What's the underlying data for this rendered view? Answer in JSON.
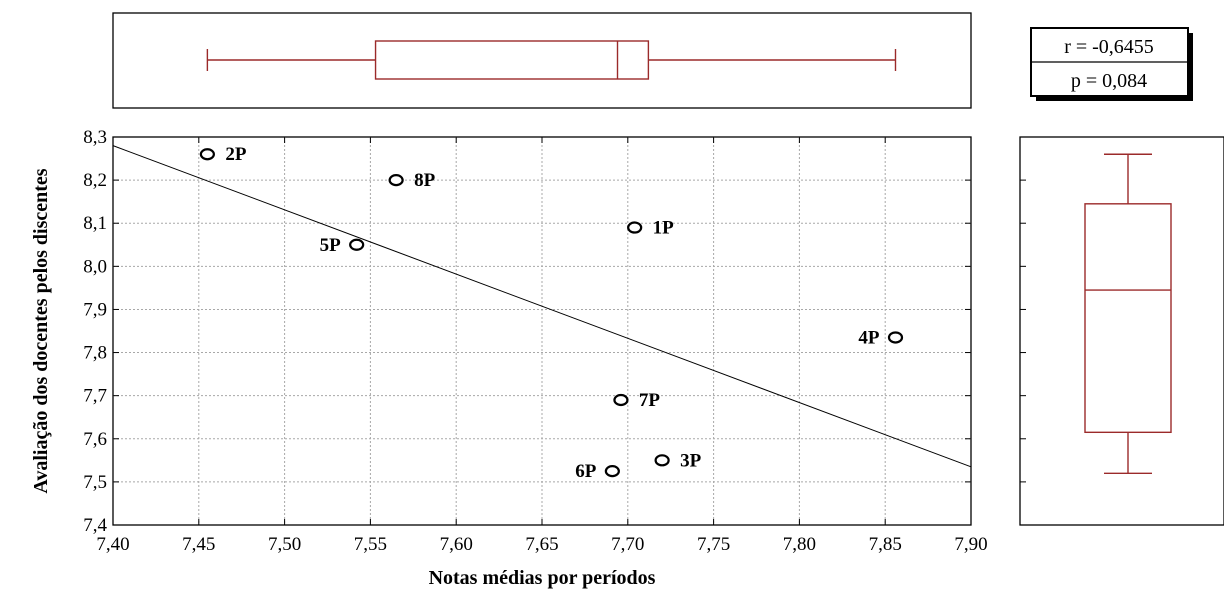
{
  "chart_data": {
    "type": "scatter",
    "xlabel": "Notas médias por períodos",
    "ylabel": "Avaliação dos docentes pelos discentes",
    "xlim": [
      7.4,
      7.9
    ],
    "ylim": [
      7.4,
      8.3
    ],
    "x_ticks": [
      "7,40",
      "7,45",
      "7,50",
      "7,55",
      "7,60",
      "7,65",
      "7,70",
      "7,75",
      "7,80",
      "7,85",
      "7,90"
    ],
    "y_ticks": [
      "7,4",
      "7,5",
      "7,6",
      "7,7",
      "7,8",
      "7,9",
      "8,0",
      "8,1",
      "8,2",
      "8,3"
    ],
    "grid": true,
    "points": [
      {
        "label": "2P",
        "x": 7.455,
        "y": 8.26
      },
      {
        "label": "8P",
        "x": 7.565,
        "y": 8.2
      },
      {
        "label": "1P",
        "x": 7.704,
        "y": 8.09
      },
      {
        "label": "5P",
        "x": 7.542,
        "y": 8.05
      },
      {
        "label": "4P",
        "x": 7.856,
        "y": 7.835
      },
      {
        "label": "7P",
        "x": 7.696,
        "y": 7.69
      },
      {
        "label": "3P",
        "x": 7.72,
        "y": 7.55
      },
      {
        "label": "6P",
        "x": 7.691,
        "y": 7.525
      }
    ],
    "regression_line": {
      "x": [
        7.4,
        7.9
      ],
      "y": [
        8.28,
        7.535
      ]
    },
    "stats": {
      "r": "r = -0,6455",
      "p": "p = 0,084"
    },
    "boxplot_x": {
      "min": 7.455,
      "q1": 7.553,
      "median": 7.694,
      "q3": 7.712,
      "max": 7.856
    },
    "boxplot_y": {
      "min": 7.52,
      "q1": 7.615,
      "median": 7.945,
      "q3": 8.145,
      "max": 8.26
    },
    "colors": {
      "box": "#9b2a2a",
      "grid": "#a8a8a8",
      "line": "#000000"
    }
  }
}
